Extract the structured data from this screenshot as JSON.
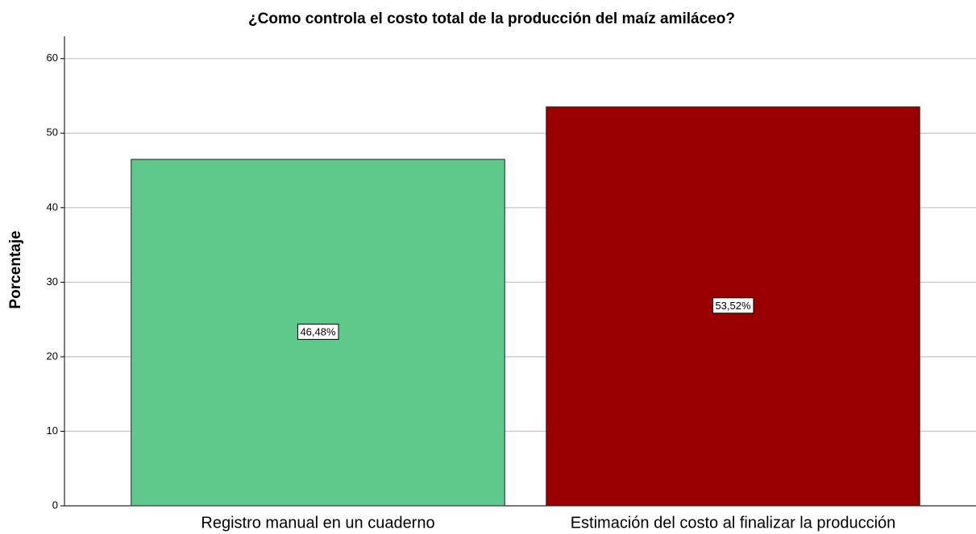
{
  "chart_data": {
    "type": "bar",
    "title": "¿Como controla el costo total de la producción del maíz amiláceo?",
    "y_label": "Porcentaje",
    "categories": [
      "Registro manual en un cuaderno",
      "Estimación del costo al finalizar la producción"
    ],
    "values": [
      46.48,
      53.52
    ],
    "value_labels": [
      "46,48%",
      "53,52%"
    ],
    "colors": [
      "#5ec98a",
      "#990000"
    ],
    "ylim": [
      0,
      63
    ],
    "yticks": [
      0,
      10,
      20,
      30,
      40,
      50,
      60
    ],
    "grid": true
  }
}
